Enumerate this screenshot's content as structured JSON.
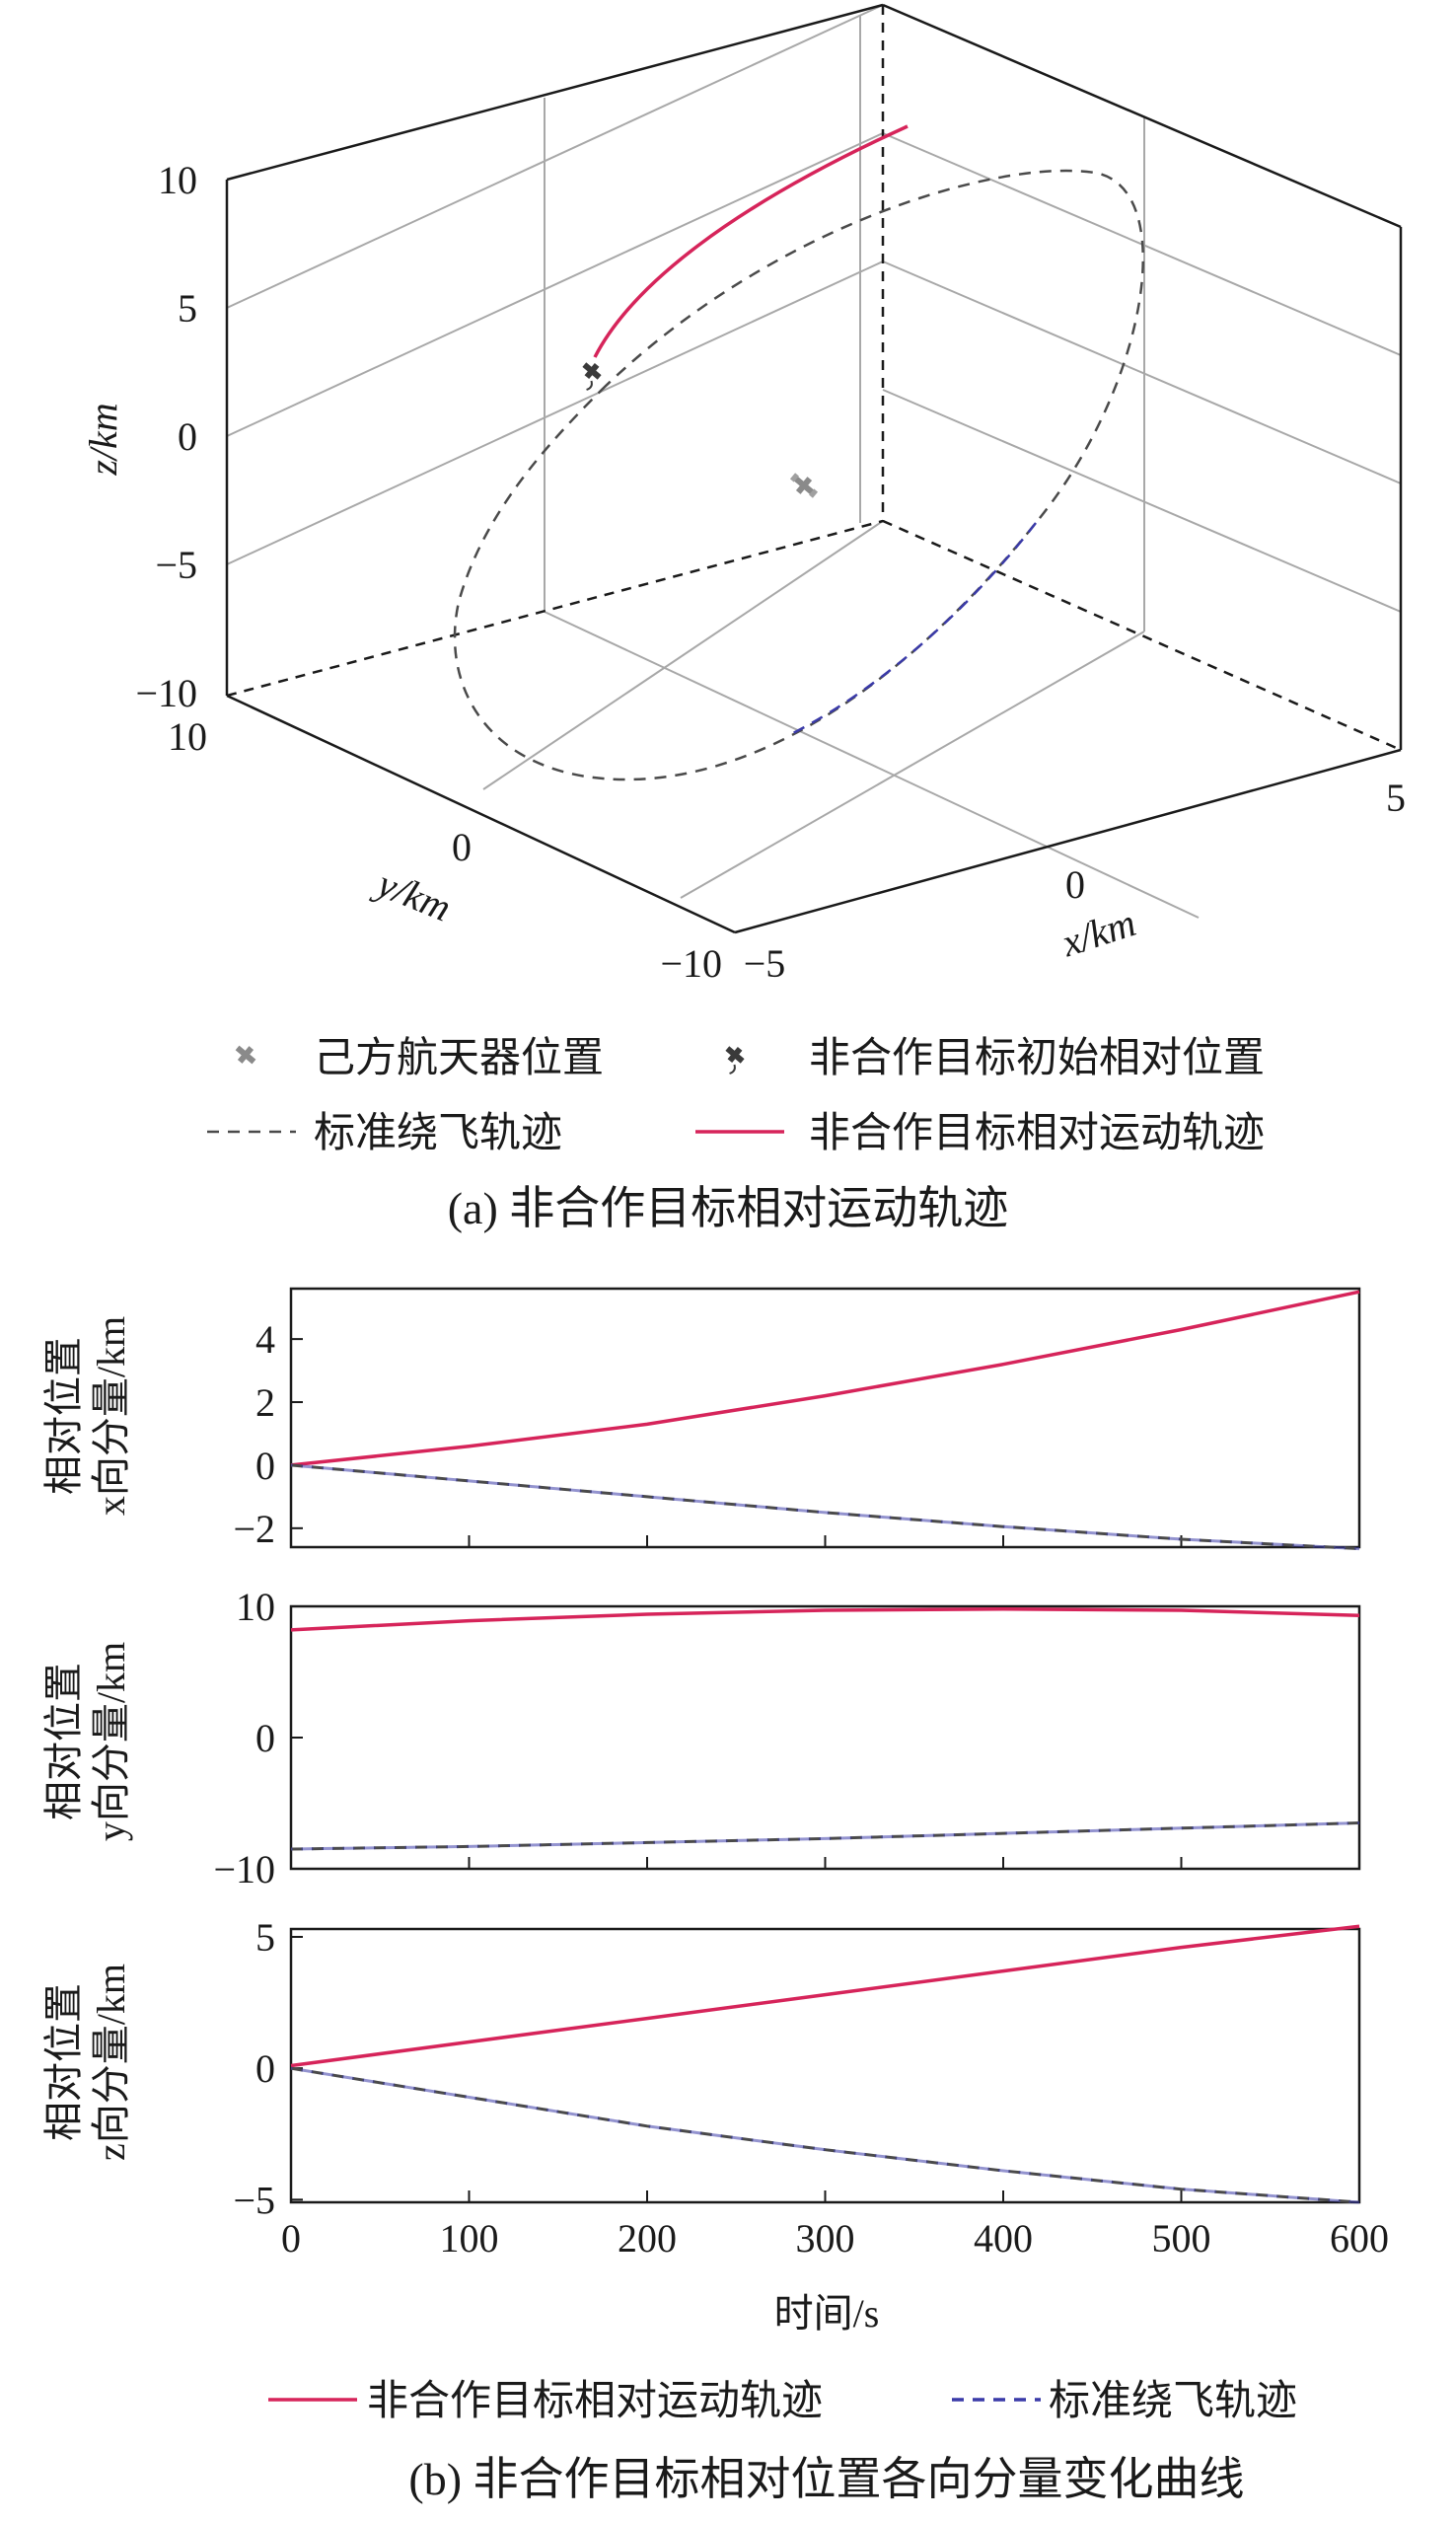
{
  "panel_a": {
    "caption": "(a) 非合作目标相对运动轨迹",
    "axis_x_label": "x/km",
    "axis_y_label": "y/km",
    "axis_z_label": "z/km",
    "x_ticks": [
      "−5",
      "0",
      "5"
    ],
    "y_ticks": [
      "10",
      "0",
      "−10"
    ],
    "z_ticks": [
      "10",
      "5",
      "0",
      "−5",
      "−10"
    ],
    "legend": {
      "own_spacecraft": "己方航天器位置",
      "target_initial": "非合作目标初始相对位置",
      "standard_fly_around": "标准绕飞轨迹",
      "target_relative": "非合作目标相对运动轨迹"
    }
  },
  "panel_b": {
    "caption": "(b) 非合作目标相对位置各向分量变化曲线",
    "xlabel": "时间/s",
    "x_ticks": [
      "0",
      "100",
      "200",
      "300",
      "400",
      "500",
      "600"
    ],
    "ylabel_x": [
      "相对位置",
      "x向分量/km"
    ],
    "ylabel_y": [
      "相对位置",
      "y向分量/km"
    ],
    "ylabel_z": [
      "相对位置",
      "z向分量/km"
    ],
    "ticks_x": [
      "4",
      "2",
      "0",
      "−2"
    ],
    "ticks_y": [
      "10",
      "0",
      "−10"
    ],
    "ticks_z": [
      "5",
      "0",
      "−5"
    ],
    "legend": {
      "target_relative": "非合作目标相对运动轨迹",
      "standard_fly_around": "标准绕飞轨迹"
    }
  },
  "colors": {
    "target": "#d6245a",
    "standard_dark": "#4a4a4a",
    "standard_blue": "#3a3aa8",
    "axis": "#1a1a1a",
    "grid": "#a8a8a8"
  },
  "chart_data": [
    {
      "type": "line",
      "title": "(a) 非合作目标相对运动轨迹",
      "projection": "3d",
      "xlabel": "x/km",
      "ylabel": "y/km",
      "zlabel": "z/km",
      "xlim": [
        -5,
        5
      ],
      "ylim": [
        -10,
        10
      ],
      "zlim": [
        -10,
        10
      ],
      "grid": true,
      "series": [
        {
          "name": "标准绕飞轨迹",
          "style": "dashed",
          "closed_orbit": true
        },
        {
          "name": "非合作目标相对运动轨迹",
          "style": "solid",
          "from": [
            0,
            8,
            3
          ],
          "to": [
            5.5,
            9.5,
            5.3
          ]
        },
        {
          "name": "己方航天器位置",
          "marker": "satellite",
          "point": [
            0,
            0,
            0
          ]
        },
        {
          "name": "非合作目标初始相对位置",
          "marker": "satellite",
          "point": [
            0,
            8,
            3
          ]
        }
      ]
    },
    {
      "type": "line",
      "xlabel": "时间/s",
      "ylabel": "相对位置 x向分量/km",
      "xlim": [
        0,
        600
      ],
      "ylim": [
        -2.6,
        5.6
      ],
      "x": [
        0,
        100,
        200,
        300,
        400,
        500,
        600
      ],
      "series": [
        {
          "name": "非合作目标相对运动轨迹",
          "values": [
            0.0,
            0.6,
            1.3,
            2.2,
            3.2,
            4.3,
            5.5
          ]
        },
        {
          "name": "标准绕飞轨迹",
          "values": [
            0.0,
            -0.5,
            -1.0,
            -1.5,
            -1.95,
            -2.35,
            -2.65
          ]
        }
      ]
    },
    {
      "type": "line",
      "xlabel": "时间/s",
      "ylabel": "相对位置 y向分量/km",
      "xlim": [
        0,
        600
      ],
      "ylim": [
        -10,
        10
      ],
      "x": [
        0,
        100,
        200,
        300,
        400,
        500,
        600
      ],
      "series": [
        {
          "name": "非合作目标相对运动轨迹",
          "values": [
            8.2,
            8.9,
            9.4,
            9.7,
            9.8,
            9.7,
            9.3
          ]
        },
        {
          "name": "标准绕飞轨迹",
          "values": [
            -8.5,
            -8.3,
            -8.0,
            -7.7,
            -7.3,
            -6.9,
            -6.5
          ]
        }
      ]
    },
    {
      "type": "line",
      "xlabel": "时间/s",
      "ylabel": "相对位置 z向分量/km",
      "xlim": [
        0,
        600
      ],
      "ylim": [
        -5.1,
        5.3
      ],
      "x": [
        0,
        100,
        200,
        300,
        400,
        500,
        600
      ],
      "series": [
        {
          "name": "非合作目标相对运动轨迹",
          "values": [
            0.1,
            1.0,
            1.9,
            2.8,
            3.7,
            4.6,
            5.4
          ]
        },
        {
          "name": "标准绕飞轨迹",
          "values": [
            0.0,
            -1.1,
            -2.2,
            -3.1,
            -3.9,
            -4.6,
            -5.1
          ]
        }
      ]
    }
  ]
}
